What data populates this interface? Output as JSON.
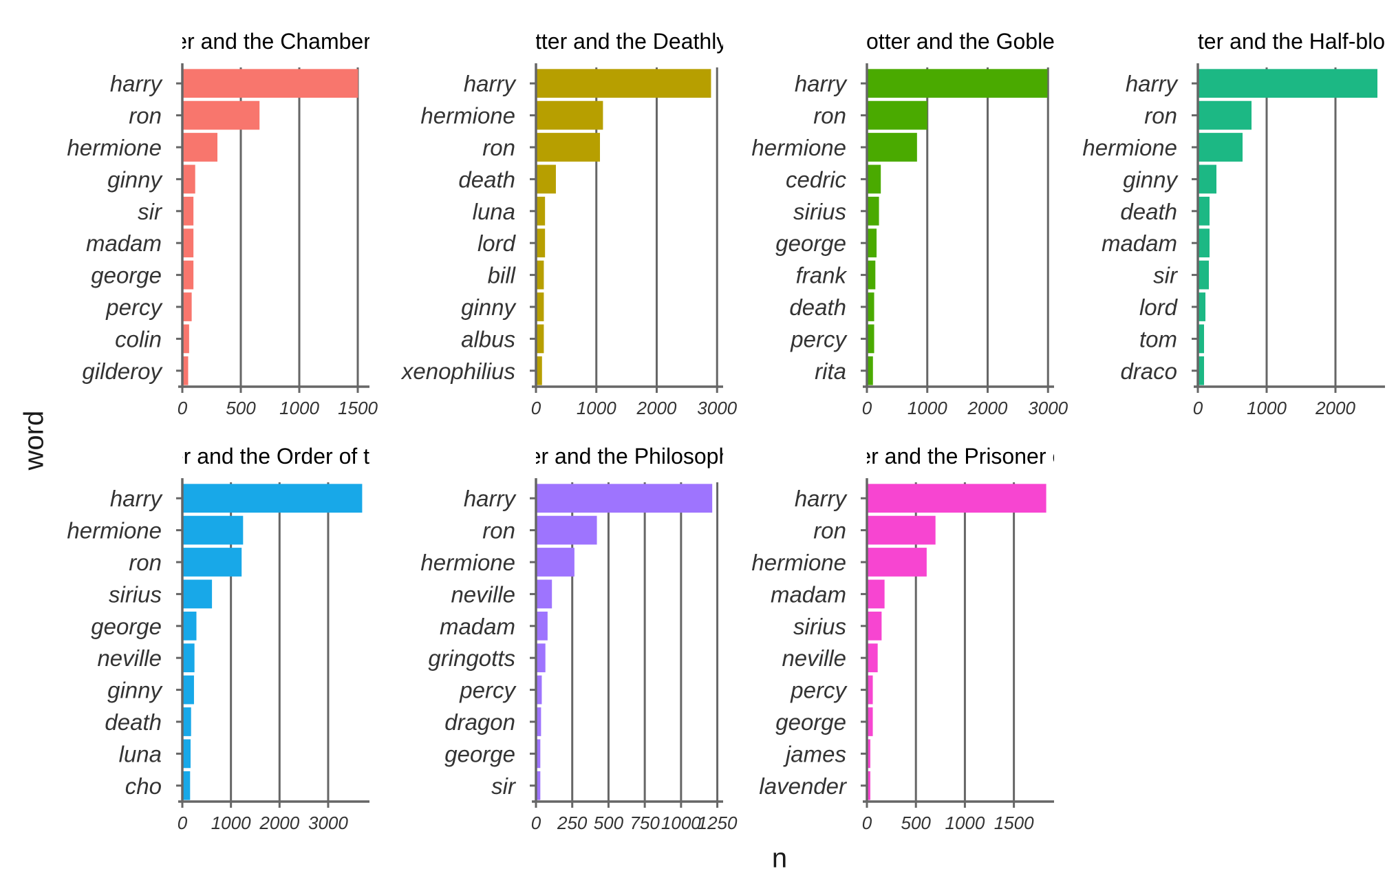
{
  "xlabel": "n",
  "ylabel": "word",
  "colors": {
    "axis": "#666666",
    "label": "#333333",
    "title": "#000000"
  },
  "chart_data": [
    {
      "type": "bar",
      "orientation": "horizontal",
      "title": "Harry Potter and the Chamber of Secrets",
      "color": "#F8766D",
      "categories": [
        "harry",
        "ron",
        "hermione",
        "ginny",
        "sir",
        "madam",
        "george",
        "percy",
        "colin",
        "gilderoy"
      ],
      "values": [
        1503,
        660,
        300,
        110,
        95,
        95,
        95,
        80,
        58,
        50
      ],
      "xlim": [
        0,
        1600
      ],
      "xticks": [
        0,
        500,
        1000,
        1500
      ],
      "xticklabels": [
        "0",
        "500",
        "1000",
        "1500"
      ],
      "grid": true
    },
    {
      "type": "bar",
      "orientation": "horizontal",
      "title": "Harry Potter and the Deathly Hallows",
      "color": "#B79F00",
      "categories": [
        "harry",
        "hermione",
        "ron",
        "death",
        "luna",
        "lord",
        "bill",
        "ginny",
        "albus",
        "xenophilius"
      ],
      "values": [
        2900,
        1110,
        1060,
        330,
        150,
        150,
        130,
        130,
        130,
        100
      ],
      "xlim": [
        0,
        3100
      ],
      "xticks": [
        0,
        1000,
        2000,
        3000
      ],
      "xticklabels": [
        "0",
        "1000",
        "2000",
        "3000"
      ],
      "grid": true
    },
    {
      "type": "bar",
      "orientation": "horizontal",
      "title": "Harry Potter and the Goblet of Fire",
      "color": "#4AAA00",
      "categories": [
        "harry",
        "ron",
        "hermione",
        "cedric",
        "sirius",
        "george",
        "frank",
        "death",
        "percy",
        "rita"
      ],
      "values": [
        2990,
        1000,
        830,
        230,
        200,
        160,
        140,
        120,
        120,
        100
      ],
      "xlim": [
        0,
        3100
      ],
      "xticks": [
        0,
        1000,
        2000,
        3000
      ],
      "xticklabels": [
        "0",
        "1000",
        "2000",
        "3000"
      ],
      "grid": true
    },
    {
      "type": "bar",
      "orientation": "horizontal",
      "title": "Harry Potter and the Half-blood Prince",
      "color": "#1CB884",
      "categories": [
        "harry",
        "ron",
        "hermione",
        "ginny",
        "death",
        "madam",
        "sir",
        "lord",
        "tom",
        "draco"
      ],
      "values": [
        2610,
        780,
        650,
        270,
        170,
        170,
        160,
        110,
        90,
        90
      ],
      "xlim": [
        0,
        2720
      ],
      "xticks": [
        0,
        1000,
        2000
      ],
      "xticklabels": [
        "0",
        "1000",
        "2000"
      ],
      "grid": true
    },
    {
      "type": "bar",
      "orientation": "horizontal",
      "title": "Harry Potter and the Order of the Phoenix",
      "color": "#18A8E8",
      "categories": [
        "harry",
        "hermione",
        "ron",
        "sirius",
        "george",
        "neville",
        "ginny",
        "death",
        "luna",
        "cho"
      ],
      "values": [
        3700,
        1250,
        1220,
        610,
        290,
        250,
        240,
        180,
        170,
        160
      ],
      "xlim": [
        0,
        3850
      ],
      "xticks": [
        0,
        1000,
        2000,
        3000
      ],
      "xticklabels": [
        "0",
        "1000",
        "2000",
        "3000"
      ],
      "grid": true
    },
    {
      "type": "bar",
      "orientation": "horizontal",
      "title": "Harry Potter and the Philosopher's Stone",
      "color": "#9E74FE",
      "categories": [
        "harry",
        "ron",
        "hermione",
        "neville",
        "madam",
        "gringotts",
        "percy",
        "dragon",
        "george",
        "sir"
      ],
      "values": [
        1215,
        420,
        265,
        110,
        80,
        65,
        40,
        35,
        30,
        30
      ],
      "xlim": [
        0,
        1290
      ],
      "xticks": [
        0,
        250,
        500,
        750,
        1000,
        1250
      ],
      "xticklabels": [
        "0",
        "250",
        "500",
        "750",
        "1000",
        "1250"
      ],
      "grid": true
    },
    {
      "type": "bar",
      "orientation": "horizontal",
      "title": "Harry Potter and the Prisoner of Azkaban",
      "color": "#F745D1",
      "categories": [
        "harry",
        "ron",
        "hermione",
        "madam",
        "sirius",
        "neville",
        "percy",
        "george",
        "james",
        "lavender"
      ],
      "values": [
        1830,
        700,
        610,
        180,
        150,
        110,
        60,
        60,
        35,
        35
      ],
      "xlim": [
        0,
        1910
      ],
      "xticks": [
        0,
        500,
        1000,
        1500
      ],
      "xticklabels": [
        "0",
        "500",
        "1000",
        "1500"
      ],
      "grid": true
    }
  ]
}
